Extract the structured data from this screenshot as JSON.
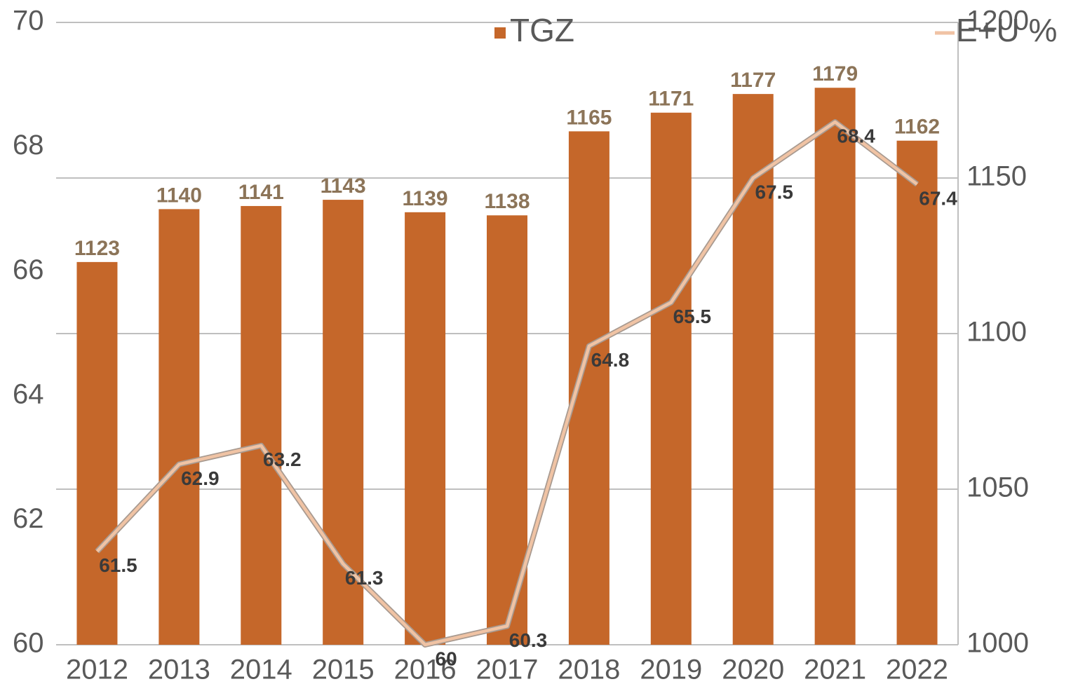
{
  "chart_data": {
    "type": "bar_line",
    "categories": [
      "2012",
      "2013",
      "2014",
      "2015",
      "2016",
      "2017",
      "2018",
      "2019",
      "2020",
      "2021",
      "2022"
    ],
    "series": [
      {
        "name": "TGZ",
        "type": "bar",
        "axis": "y2",
        "color": "#c5672a",
        "values": [
          1123,
          1140,
          1141,
          1143,
          1139,
          1138,
          1165,
          1171,
          1177,
          1179,
          1162
        ]
      },
      {
        "name": "E+U %",
        "type": "line",
        "axis": "y",
        "color": "#f0c3a4",
        "values": [
          61.5,
          62.9,
          63.2,
          61.3,
          60,
          60.3,
          64.8,
          65.5,
          67.5,
          68.4,
          67.4
        ]
      }
    ],
    "ylim": [
      60,
      70
    ],
    "yticks": [
      60,
      62,
      64,
      66,
      68,
      70
    ],
    "y2lim": [
      1000,
      1200
    ],
    "y2ticks": [
      1000,
      1050,
      1100,
      1150,
      1200
    ],
    "grid": "y2",
    "legend": "top"
  }
}
